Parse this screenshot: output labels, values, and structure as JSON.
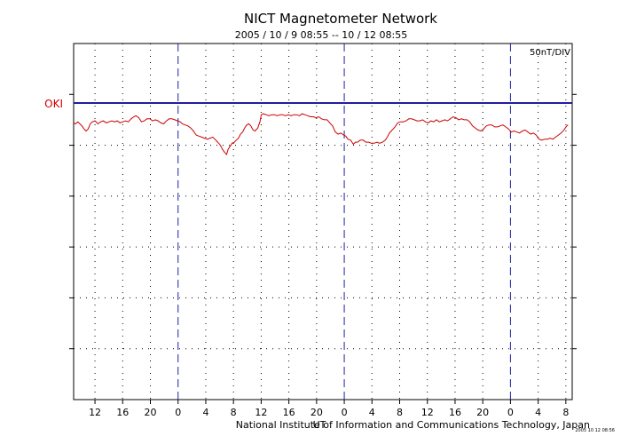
{
  "chart_data": {
    "type": "line",
    "title": "NICT Magnetometer Network",
    "subtitle": "2005 / 10 / 9   08:55 -- 10 / 12   08:55",
    "scale_label": "50nT/DIV",
    "credit": "National Institute of Information and Communications Technology, Japan",
    "small_mark": "UT",
    "corner_mark": "2005 10 12 08:56",
    "x_unit": "hours (UT) from 2005-10-09 08:55",
    "x_range": [
      0,
      72
    ],
    "y_unit": "nT",
    "y_range": [
      -300,
      50
    ],
    "grid": true,
    "baseline_color": "#1f1fa0",
    "series_color": "#cc0000",
    "label_color": "#cc0000",
    "day_boundaries": [
      15.083,
      39.083,
      63.083
    ],
    "x_ticks": [
      {
        "x": 3.083,
        "label": "12"
      },
      {
        "x": 7.083,
        "label": "16"
      },
      {
        "x": 11.083,
        "label": "20"
      },
      {
        "x": 15.083,
        "label": "0"
      },
      {
        "x": 19.083,
        "label": "4"
      },
      {
        "x": 23.083,
        "label": "8"
      },
      {
        "x": 27.083,
        "label": "12"
      },
      {
        "x": 31.083,
        "label": "16"
      },
      {
        "x": 35.083,
        "label": "20"
      },
      {
        "x": 39.083,
        "label": "0"
      },
      {
        "x": 43.083,
        "label": "4"
      },
      {
        "x": 47.083,
        "label": "8"
      },
      {
        "x": 51.083,
        "label": "12"
      },
      {
        "x": 55.083,
        "label": "16"
      },
      {
        "x": 59.083,
        "label": "20"
      },
      {
        "x": 63.083,
        "label": "0"
      },
      {
        "x": 67.083,
        "label": "4"
      },
      {
        "x": 71.083,
        "label": "8"
      }
    ],
    "y_gridlines": [
      0,
      -50,
      -100,
      -150,
      -200,
      -250
    ],
    "series": [
      {
        "name": "OKI",
        "offset": 0,
        "points": [
          [
            0.0,
            -28
          ],
          [
            0.3,
            -29
          ],
          [
            0.6,
            -27
          ],
          [
            0.9,
            -29
          ],
          [
            1.2,
            -31
          ],
          [
            1.5,
            -34
          ],
          [
            1.8,
            -36
          ],
          [
            2.1,
            -34
          ],
          [
            2.4,
            -29
          ],
          [
            2.7,
            -27
          ],
          [
            3.1,
            -26
          ],
          [
            3.5,
            -29
          ],
          [
            3.9,
            -27
          ],
          [
            4.3,
            -26
          ],
          [
            4.7,
            -28
          ],
          [
            5.1,
            -27
          ],
          [
            5.5,
            -26
          ],
          [
            5.9,
            -27
          ],
          [
            6.3,
            -26
          ],
          [
            6.7,
            -28
          ],
          [
            7.1,
            -27
          ],
          [
            7.5,
            -26
          ],
          [
            7.9,
            -27
          ],
          [
            8.3,
            -24
          ],
          [
            8.7,
            -22
          ],
          [
            9.0,
            -21
          ],
          [
            9.4,
            -23
          ],
          [
            9.8,
            -27
          ],
          [
            10.2,
            -26
          ],
          [
            10.6,
            -24
          ],
          [
            11.0,
            -24
          ],
          [
            11.4,
            -26
          ],
          [
            11.8,
            -25
          ],
          [
            12.2,
            -26
          ],
          [
            12.6,
            -28
          ],
          [
            13.0,
            -29
          ],
          [
            13.4,
            -26
          ],
          [
            13.8,
            -24
          ],
          [
            14.2,
            -24
          ],
          [
            14.6,
            -25
          ],
          [
            15.0,
            -26
          ],
          [
            15.4,
            -27
          ],
          [
            15.7,
            -29
          ],
          [
            16.1,
            -30
          ],
          [
            16.5,
            -31
          ],
          [
            16.9,
            -33
          ],
          [
            17.3,
            -36
          ],
          [
            17.7,
            -40
          ],
          [
            18.1,
            -41
          ],
          [
            18.5,
            -42
          ],
          [
            18.9,
            -43
          ],
          [
            19.3,
            -44
          ],
          [
            19.7,
            -43
          ],
          [
            20.1,
            -42
          ],
          [
            20.4,
            -44
          ],
          [
            20.8,
            -47
          ],
          [
            21.2,
            -50
          ],
          [
            21.5,
            -54
          ],
          [
            21.8,
            -57
          ],
          [
            22.1,
            -59
          ],
          [
            22.3,
            -54
          ],
          [
            22.6,
            -51
          ],
          [
            22.9,
            -48
          ],
          [
            23.2,
            -47
          ],
          [
            23.5,
            -45
          ],
          [
            23.8,
            -43
          ],
          [
            24.1,
            -39
          ],
          [
            24.4,
            -37
          ],
          [
            24.7,
            -33
          ],
          [
            25.0,
            -30
          ],
          [
            25.3,
            -29
          ],
          [
            25.6,
            -31
          ],
          [
            25.9,
            -35
          ],
          [
            26.2,
            -36
          ],
          [
            26.6,
            -33
          ],
          [
            26.9,
            -27
          ],
          [
            27.1,
            -20
          ],
          [
            27.4,
            -19
          ],
          [
            27.8,
            -20
          ],
          [
            28.2,
            -21
          ],
          [
            28.6,
            -20
          ],
          [
            29.0,
            -20
          ],
          [
            29.4,
            -21
          ],
          [
            29.8,
            -20
          ],
          [
            30.2,
            -20
          ],
          [
            30.6,
            -21
          ],
          [
            31.0,
            -20
          ],
          [
            31.4,
            -21
          ],
          [
            31.8,
            -20
          ],
          [
            32.2,
            -20
          ],
          [
            32.6,
            -21
          ],
          [
            33.0,
            -19
          ],
          [
            33.4,
            -20
          ],
          [
            33.8,
            -21
          ],
          [
            34.2,
            -22
          ],
          [
            34.6,
            -22
          ],
          [
            35.0,
            -23
          ],
          [
            35.4,
            -22
          ],
          [
            35.8,
            -24
          ],
          [
            36.2,
            -25
          ],
          [
            36.6,
            -25
          ],
          [
            37.0,
            -28
          ],
          [
            37.4,
            -31
          ],
          [
            37.8,
            -37
          ],
          [
            38.2,
            -39
          ],
          [
            38.6,
            -38
          ],
          [
            39.0,
            -40
          ],
          [
            39.3,
            -41
          ],
          [
            39.6,
            -44
          ],
          [
            40.0,
            -45
          ],
          [
            40.4,
            -49
          ],
          [
            40.7,
            -47
          ],
          [
            41.0,
            -47
          ],
          [
            41.4,
            -45
          ],
          [
            41.8,
            -45
          ],
          [
            42.2,
            -47
          ],
          [
            42.6,
            -47
          ],
          [
            43.0,
            -48
          ],
          [
            43.4,
            -48
          ],
          [
            43.8,
            -47
          ],
          [
            44.2,
            -48
          ],
          [
            44.6,
            -47
          ],
          [
            45.0,
            -45
          ],
          [
            45.3,
            -42
          ],
          [
            45.6,
            -38
          ],
          [
            46.0,
            -35
          ],
          [
            46.4,
            -32
          ],
          [
            46.8,
            -28
          ],
          [
            47.2,
            -27
          ],
          [
            47.6,
            -27
          ],
          [
            48.0,
            -26
          ],
          [
            48.4,
            -24
          ],
          [
            48.8,
            -24
          ],
          [
            49.2,
            -25
          ],
          [
            49.6,
            -26
          ],
          [
            50.0,
            -26
          ],
          [
            50.4,
            -25
          ],
          [
            50.8,
            -27
          ],
          [
            51.2,
            -28
          ],
          [
            51.6,
            -26
          ],
          [
            52.0,
            -27
          ],
          [
            52.4,
            -25
          ],
          [
            52.8,
            -27
          ],
          [
            53.2,
            -26
          ],
          [
            53.6,
            -25
          ],
          [
            54.0,
            -26
          ],
          [
            54.4,
            -24
          ],
          [
            54.8,
            -22
          ],
          [
            55.2,
            -23
          ],
          [
            55.6,
            -25
          ],
          [
            56.0,
            -24
          ],
          [
            56.4,
            -25
          ],
          [
            56.8,
            -25
          ],
          [
            57.2,
            -27
          ],
          [
            57.6,
            -31
          ],
          [
            58.0,
            -33
          ],
          [
            58.4,
            -35
          ],
          [
            58.8,
            -36
          ],
          [
            59.2,
            -34
          ],
          [
            59.6,
            -31
          ],
          [
            60.0,
            -30
          ],
          [
            60.4,
            -30
          ],
          [
            60.8,
            -32
          ],
          [
            61.2,
            -32
          ],
          [
            61.6,
            -31
          ],
          [
            62.0,
            -30
          ],
          [
            62.4,
            -32
          ],
          [
            62.8,
            -34
          ],
          [
            63.2,
            -37
          ],
          [
            63.6,
            -36
          ],
          [
            64.0,
            -37
          ],
          [
            64.4,
            -38
          ],
          [
            64.8,
            -36
          ],
          [
            65.2,
            -35
          ],
          [
            65.6,
            -37
          ],
          [
            66.0,
            -39
          ],
          [
            66.4,
            -38
          ],
          [
            66.8,
            -40
          ],
          [
            67.2,
            -44
          ],
          [
            67.6,
            -45
          ],
          [
            68.0,
            -44
          ],
          [
            68.4,
            -44
          ],
          [
            68.8,
            -43
          ],
          [
            69.2,
            -44
          ],
          [
            69.6,
            -42
          ],
          [
            70.0,
            -40
          ],
          [
            70.4,
            -38
          ],
          [
            70.8,
            -35
          ],
          [
            71.2,
            -31
          ],
          [
            71.4,
            -30
          ]
        ]
      }
    ]
  }
}
